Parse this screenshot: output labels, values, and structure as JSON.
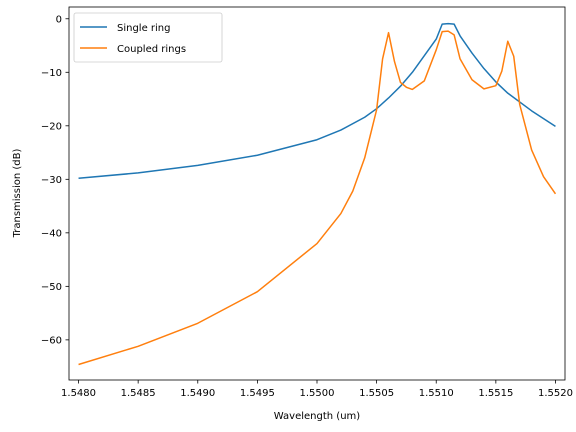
{
  "chart_data": {
    "type": "line",
    "xlabel": "Wavelength (um)",
    "ylabel": "Transmission (dB)",
    "xlim": [
      1.54792,
      1.55208
    ],
    "ylim": [
      -67.5,
      2.2
    ],
    "xticks": [
      1.548,
      1.5485,
      1.549,
      1.5495,
      1.55,
      1.5505,
      1.551,
      1.5515,
      1.552
    ],
    "xtick_labels": [
      "1.5480",
      "1.5485",
      "1.5490",
      "1.5495",
      "1.5500",
      "1.5505",
      "1.5510",
      "1.5515",
      "1.5520"
    ],
    "yticks": [
      0,
      -10,
      -20,
      -30,
      -40,
      -50,
      -60
    ],
    "ytick_labels": [
      "0",
      "−10",
      "−20",
      "−30",
      "−40",
      "−50",
      "−60"
    ],
    "grid": false,
    "legend_position": "top-left",
    "series": [
      {
        "name": "Single ring",
        "color": "#1f77b4",
        "x": [
          1.548,
          1.5485,
          1.549,
          1.5495,
          1.55,
          1.5502,
          1.5504,
          1.5505,
          1.5506,
          1.5507,
          1.5508,
          1.5509,
          1.551,
          1.55105,
          1.5511,
          1.55115,
          1.5512,
          1.5513,
          1.5514,
          1.5515,
          1.5516,
          1.5518,
          1.552
        ],
        "y": [
          -29.8,
          -28.8,
          -27.4,
          -25.5,
          -22.6,
          -20.8,
          -18.4,
          -16.8,
          -14.8,
          -12.6,
          -10.0,
          -6.9,
          -3.8,
          -1.0,
          -0.9,
          -1.0,
          -3.2,
          -6.4,
          -9.3,
          -11.8,
          -13.9,
          -17.2,
          -20.1
        ]
      },
      {
        "name": "Coupled rings",
        "color": "#ff7f0e",
        "x": [
          1.548,
          1.5485,
          1.549,
          1.5495,
          1.55,
          1.5502,
          1.5503,
          1.5504,
          1.5505,
          1.55055,
          1.5506,
          1.55065,
          1.5507,
          1.55075,
          1.5508,
          1.5509,
          1.551,
          1.55105,
          1.5511,
          1.55115,
          1.5512,
          1.5513,
          1.5514,
          1.5515,
          1.55155,
          1.5516,
          1.55165,
          1.5517,
          1.5518,
          1.5519,
          1.552
        ],
        "y": [
          -64.6,
          -61.2,
          -56.9,
          -51.0,
          -42.0,
          -36.4,
          -32.2,
          -26.0,
          -17.0,
          -7.5,
          -2.6,
          -8.0,
          -11.9,
          -12.8,
          -13.2,
          -11.6,
          -5.8,
          -2.4,
          -2.3,
          -3.0,
          -7.5,
          -11.4,
          -13.1,
          -12.5,
          -9.8,
          -4.2,
          -7.0,
          -16.0,
          -24.5,
          -29.5,
          -32.7
        ]
      }
    ]
  }
}
